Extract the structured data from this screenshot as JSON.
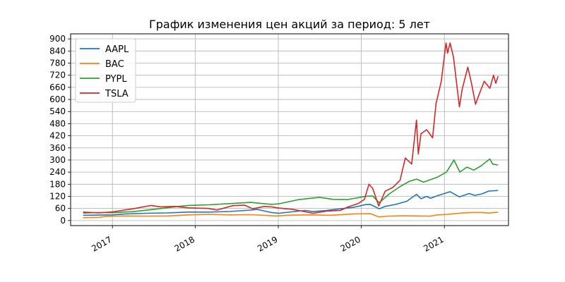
{
  "chart_data": {
    "type": "line",
    "title": "График изменения цен акций за период: 5 лет",
    "xlabel": "",
    "ylabel": "",
    "xlim": [
      "2016-07-01",
      "2021-10-10"
    ],
    "ylim": [
      -25,
      925
    ],
    "y_ticks": [
      0,
      60,
      120,
      180,
      240,
      300,
      360,
      420,
      480,
      540,
      600,
      660,
      720,
      780,
      840,
      900
    ],
    "x_ticks": [
      {
        "label": "2017",
        "date": "2017-01-01"
      },
      {
        "label": "2018",
        "date": "2018-01-01"
      },
      {
        "label": "2019",
        "date": "2019-01-01"
      },
      {
        "label": "2020",
        "date": "2020-01-01"
      },
      {
        "label": "2021",
        "date": "2021-01-01"
      }
    ],
    "grid": true,
    "legend_position": "top-left",
    "series": [
      {
        "name": "AAPL",
        "color": "#1f77b4",
        "points": [
          [
            "2016-08-25",
            26
          ],
          [
            "2016-11-01",
            27
          ],
          [
            "2017-01-01",
            28
          ],
          [
            "2017-03-01",
            33
          ],
          [
            "2017-06-01",
            36
          ],
          [
            "2017-09-01",
            38
          ],
          [
            "2017-12-01",
            42
          ],
          [
            "2018-03-01",
            42
          ],
          [
            "2018-06-01",
            45
          ],
          [
            "2018-09-01",
            52
          ],
          [
            "2018-10-01",
            55
          ],
          [
            "2018-12-01",
            40
          ],
          [
            "2019-01-03",
            36
          ],
          [
            "2019-03-01",
            43
          ],
          [
            "2019-05-01",
            50
          ],
          [
            "2019-06-01",
            44
          ],
          [
            "2019-08-01",
            50
          ],
          [
            "2019-10-01",
            58
          ],
          [
            "2019-12-01",
            66
          ],
          [
            "2020-01-20",
            79
          ],
          [
            "2020-02-10",
            80
          ],
          [
            "2020-03-20",
            58
          ],
          [
            "2020-04-15",
            70
          ],
          [
            "2020-06-01",
            80
          ],
          [
            "2020-07-20",
            96
          ],
          [
            "2020-08-31",
            130
          ],
          [
            "2020-09-20",
            108
          ],
          [
            "2020-10-15",
            120
          ],
          [
            "2020-11-01",
            110
          ],
          [
            "2020-12-01",
            123
          ],
          [
            "2021-01-26",
            143
          ],
          [
            "2021-03-08",
            117
          ],
          [
            "2021-04-20",
            134
          ],
          [
            "2021-05-15",
            125
          ],
          [
            "2021-06-15",
            132
          ],
          [
            "2021-07-15",
            146
          ],
          [
            "2021-08-25",
            149
          ]
        ]
      },
      {
        "name": "BAC",
        "color": "#ff7f0e",
        "points": [
          [
            "2016-08-25",
            14
          ],
          [
            "2016-11-01",
            16
          ],
          [
            "2016-12-10",
            21
          ],
          [
            "2017-03-01",
            23
          ],
          [
            "2017-06-01",
            22
          ],
          [
            "2017-09-01",
            23
          ],
          [
            "2017-12-01",
            28
          ],
          [
            "2018-03-01",
            31
          ],
          [
            "2018-06-01",
            28
          ],
          [
            "2018-09-01",
            29
          ],
          [
            "2018-12-24",
            23
          ],
          [
            "2019-03-01",
            27
          ],
          [
            "2019-06-01",
            28
          ],
          [
            "2019-08-15",
            26
          ],
          [
            "2019-12-01",
            33
          ],
          [
            "2020-02-10",
            34
          ],
          [
            "2020-03-20",
            18
          ],
          [
            "2020-05-01",
            22
          ],
          [
            "2020-07-01",
            24
          ],
          [
            "2020-09-01",
            23
          ],
          [
            "2020-10-30",
            22
          ],
          [
            "2020-12-01",
            28
          ],
          [
            "2021-01-15",
            31
          ],
          [
            "2021-03-15",
            37
          ],
          [
            "2021-05-01",
            40
          ],
          [
            "2021-06-15",
            40
          ],
          [
            "2021-07-15",
            37
          ],
          [
            "2021-08-25",
            41
          ]
        ]
      },
      {
        "name": "PYPL",
        "color": "#2ca02c",
        "points": [
          [
            "2016-08-25",
            37
          ],
          [
            "2016-11-01",
            40
          ],
          [
            "2017-01-01",
            39
          ],
          [
            "2017-04-01",
            44
          ],
          [
            "2017-07-01",
            55
          ],
          [
            "2017-10-01",
            68
          ],
          [
            "2017-12-01",
            75
          ],
          [
            "2018-03-01",
            78
          ],
          [
            "2018-06-01",
            84
          ],
          [
            "2018-09-01",
            90
          ],
          [
            "2018-12-01",
            80
          ],
          [
            "2019-01-03",
            83
          ],
          [
            "2019-04-01",
            104
          ],
          [
            "2019-07-01",
            115
          ],
          [
            "2019-09-01",
            105
          ],
          [
            "2019-11-01",
            104
          ],
          [
            "2020-01-20",
            120
          ],
          [
            "2020-02-20",
            122
          ],
          [
            "2020-03-20",
            88
          ],
          [
            "2020-05-01",
            130
          ],
          [
            "2020-06-15",
            165
          ],
          [
            "2020-08-01",
            195
          ],
          [
            "2020-09-01",
            205
          ],
          [
            "2020-10-01",
            190
          ],
          [
            "2020-12-01",
            215
          ],
          [
            "2021-01-10",
            240
          ],
          [
            "2021-02-12",
            300
          ],
          [
            "2021-03-10",
            240
          ],
          [
            "2021-04-10",
            265
          ],
          [
            "2021-05-10",
            250
          ],
          [
            "2021-06-10",
            270
          ],
          [
            "2021-07-20",
            305
          ],
          [
            "2021-08-01",
            280
          ],
          [
            "2021-08-25",
            275
          ]
        ]
      },
      {
        "name": "TSLA",
        "color": "#d62728",
        "points": [
          [
            "2016-08-25",
            42
          ],
          [
            "2016-11-01",
            38
          ],
          [
            "2017-01-01",
            43
          ],
          [
            "2017-04-01",
            58
          ],
          [
            "2017-06-20",
            75
          ],
          [
            "2017-08-01",
            68
          ],
          [
            "2017-10-01",
            70
          ],
          [
            "2017-12-01",
            63
          ],
          [
            "2018-03-01",
            60
          ],
          [
            "2018-04-05",
            52
          ],
          [
            "2018-06-15",
            74
          ],
          [
            "2018-08-07",
            76
          ],
          [
            "2018-09-10",
            58
          ],
          [
            "2018-11-01",
            70
          ],
          [
            "2018-12-01",
            68
          ],
          [
            "2019-01-03",
            62
          ],
          [
            "2019-03-01",
            56
          ],
          [
            "2019-06-03",
            36
          ],
          [
            "2019-08-01",
            47
          ],
          [
            "2019-10-01",
            50
          ],
          [
            "2019-11-01",
            66
          ],
          [
            "2019-12-20",
            85
          ],
          [
            "2020-01-15",
            105
          ],
          [
            "2020-02-04",
            180
          ],
          [
            "2020-02-20",
            160
          ],
          [
            "2020-03-18",
            72
          ],
          [
            "2020-04-15",
            145
          ],
          [
            "2020-05-20",
            165
          ],
          [
            "2020-06-20",
            200
          ],
          [
            "2020-07-13",
            310
          ],
          [
            "2020-08-10",
            280
          ],
          [
            "2020-08-31",
            498
          ],
          [
            "2020-09-08",
            330
          ],
          [
            "2020-09-20",
            430
          ],
          [
            "2020-10-15",
            450
          ],
          [
            "2020-11-10",
            410
          ],
          [
            "2020-11-25",
            580
          ],
          [
            "2020-12-18",
            690
          ],
          [
            "2021-01-08",
            880
          ],
          [
            "2021-01-15",
            830
          ],
          [
            "2021-01-26",
            880
          ],
          [
            "2021-02-10",
            810
          ],
          [
            "2021-03-08",
            563
          ],
          [
            "2021-03-20",
            650
          ],
          [
            "2021-04-14",
            760
          ],
          [
            "2021-04-30",
            680
          ],
          [
            "2021-05-18",
            576
          ],
          [
            "2021-06-01",
            620
          ],
          [
            "2021-06-25",
            690
          ],
          [
            "2021-07-20",
            655
          ],
          [
            "2021-08-05",
            720
          ],
          [
            "2021-08-15",
            680
          ],
          [
            "2021-08-25",
            715
          ]
        ]
      }
    ]
  }
}
